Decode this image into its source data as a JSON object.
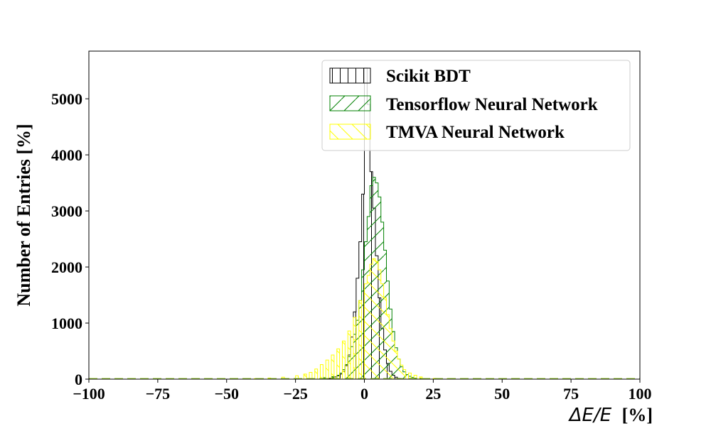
{
  "chart_data": {
    "type": "histogram",
    "xlabel_math": "ΔE/E",
    "xlabel_unit": "[%]",
    "ylabel": "Number of Entries [%]",
    "xlim": [
      -100,
      100
    ],
    "ylim": [
      0,
      5850
    ],
    "xticks": [
      "−100",
      "−75",
      "−50",
      "−25",
      "0",
      "25",
      "50",
      "75",
      "100"
    ],
    "xtick_values": [
      -100,
      -75,
      -50,
      -25,
      0,
      25,
      50,
      75,
      100
    ],
    "yticks": [
      "0",
      "1000",
      "2000",
      "3000",
      "4000",
      "5000"
    ],
    "ytick_values": [
      0,
      1000,
      2000,
      3000,
      4000,
      5000
    ],
    "bin_width": 1,
    "legend_position": "upper right",
    "series": [
      {
        "name": "Scikit BDT",
        "color": "#000000",
        "hatch": "vertical",
        "bins": [
          [
            -15,
            5
          ],
          [
            -14,
            10
          ],
          [
            -13,
            15
          ],
          [
            -12,
            25
          ],
          [
            -11,
            40
          ],
          [
            -10,
            60
          ],
          [
            -9,
            90
          ],
          [
            -8,
            140
          ],
          [
            -7,
            240
          ],
          [
            -6,
            430
          ],
          [
            -5,
            750
          ],
          [
            -4,
            1200
          ],
          [
            -3,
            1800
          ],
          [
            -2,
            2450
          ],
          [
            -1,
            3300
          ],
          [
            0,
            5550
          ],
          [
            1,
            4900
          ],
          [
            2,
            3700
          ],
          [
            3,
            3050
          ],
          [
            4,
            2200
          ],
          [
            5,
            1450
          ],
          [
            6,
            900
          ],
          [
            7,
            520
          ],
          [
            8,
            280
          ],
          [
            9,
            140
          ],
          [
            10,
            70
          ],
          [
            11,
            35
          ],
          [
            12,
            15
          ],
          [
            13,
            5
          ]
        ]
      },
      {
        "name": "Tensorflow Neural Network",
        "color": "#008000",
        "hatch": "forward-diagonal",
        "bins": [
          [
            -25,
            5
          ],
          [
            -20,
            10
          ],
          [
            -15,
            25
          ],
          [
            -12,
            45
          ],
          [
            -10,
            70
          ],
          [
            -9,
            110
          ],
          [
            -8,
            170
          ],
          [
            -7,
            260
          ],
          [
            -6,
            400
          ],
          [
            -5,
            580
          ],
          [
            -4,
            800
          ],
          [
            -3,
            1050
          ],
          [
            -2,
            1400
          ],
          [
            -1,
            1950
          ],
          [
            0,
            2450
          ],
          [
            1,
            2900
          ],
          [
            2,
            3450
          ],
          [
            3,
            3600
          ],
          [
            4,
            3500
          ],
          [
            5,
            3250
          ],
          [
            6,
            2800
          ],
          [
            7,
            2300
          ],
          [
            8,
            1750
          ],
          [
            9,
            1250
          ],
          [
            10,
            850
          ],
          [
            11,
            560
          ],
          [
            12,
            360
          ],
          [
            13,
            220
          ],
          [
            14,
            130
          ],
          [
            15,
            80
          ],
          [
            16,
            50
          ],
          [
            17,
            30
          ],
          [
            18,
            18
          ],
          [
            20,
            10
          ],
          [
            25,
            5
          ],
          [
            30,
            3
          ]
        ]
      },
      {
        "name": "TMVA Neural Network",
        "color": "#ffff00",
        "hatch": "back-diagonal",
        "bins": [
          [
            -40,
            10
          ],
          [
            -35,
            20
          ],
          [
            -30,
            35
          ],
          [
            -25,
            60
          ],
          [
            -22,
            90
          ],
          [
            -20,
            120
          ],
          [
            -18,
            180
          ],
          [
            -16,
            260
          ],
          [
            -14,
            340
          ],
          [
            -12,
            430
          ],
          [
            -10,
            540
          ],
          [
            -8,
            680
          ],
          [
            -6,
            860
          ],
          [
            -4,
            1100
          ],
          [
            -2,
            1400
          ],
          [
            0,
            1700
          ],
          [
            1,
            1850
          ],
          [
            2,
            2050
          ],
          [
            3,
            2150
          ],
          [
            4,
            2100
          ],
          [
            5,
            1950
          ],
          [
            6,
            1700
          ],
          [
            7,
            1450
          ],
          [
            8,
            1150
          ],
          [
            9,
            900
          ],
          [
            10,
            680
          ],
          [
            11,
            500
          ],
          [
            12,
            360
          ],
          [
            13,
            250
          ],
          [
            14,
            170
          ],
          [
            16,
            110
          ],
          [
            18,
            70
          ],
          [
            20,
            40
          ],
          [
            25,
            15
          ],
          [
            30,
            8
          ]
        ]
      }
    ]
  }
}
